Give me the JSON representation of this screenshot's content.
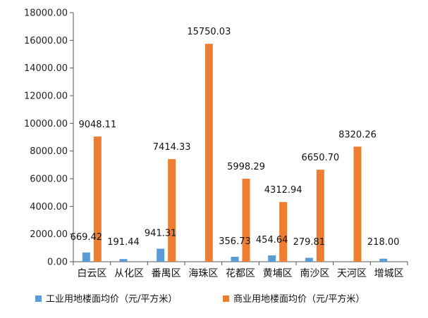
{
  "chart_data": {
    "type": "bar",
    "categories": [
      "白云区",
      "从化区",
      "番禺区",
      "海珠区",
      "花都区",
      "黄埔区",
      "南沙区",
      "天河区",
      "增城区"
    ],
    "series": [
      {
        "name": "工业用地楼面均价（元/平方米）",
        "values": [
          669.42,
          191.44,
          941.31,
          null,
          356.73,
          454.64,
          279.81,
          null,
          218.0
        ],
        "labels": [
          "669.42",
          "191.44",
          "941.31",
          "",
          "356.73",
          "454.64",
          "279.81",
          "",
          "218.00"
        ],
        "color": "#5B9BD5"
      },
      {
        "name": "商业用地楼面均价（元/平方米）",
        "values": [
          9048.11,
          null,
          7414.33,
          15750.03,
          5998.29,
          4312.94,
          6650.7,
          8320.26,
          null
        ],
        "labels": [
          "9048.11",
          "",
          "7414.33",
          "15750.03",
          "5998.29",
          "4312.94",
          "6650.70",
          "8320.26",
          ""
        ],
        "color": "#ED7D31"
      }
    ],
    "y_ticks": [
      "0.00",
      "2000.00",
      "4000.00",
      "6000.00",
      "8000.00",
      "10000.00",
      "12000.00",
      "14000.00",
      "16000.00",
      "18000.00"
    ],
    "ylim": [
      0,
      18000
    ],
    "grid": false,
    "legend_position": "bottom"
  }
}
